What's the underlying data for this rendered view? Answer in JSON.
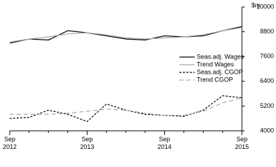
{
  "chart_data": {
    "type": "line",
    "y_label": "$m",
    "categories": [
      "Sep 2012",
      null,
      null,
      null,
      "Sep 2013",
      null,
      null,
      null,
      "Sep 2014",
      null,
      null,
      null,
      "Sep 2015"
    ],
    "series": [
      {
        "name": "Seas.adj. Wages",
        "color": "#000000",
        "dash": "solid",
        "values": [
          8250,
          8450,
          8400,
          8850,
          8750,
          8600,
          8450,
          8400,
          8600,
          8550,
          8600,
          8850,
          9050
        ]
      },
      {
        "name": "Trend Wages",
        "color": "#a6a6a6",
        "dash": "solid",
        "values": [
          8300,
          8450,
          8550,
          8700,
          8750,
          8650,
          8500,
          8450,
          8500,
          8550,
          8650,
          8850,
          9000
        ]
      },
      {
        "name": "Seas.adj. CGOP",
        "color": "#000000",
        "dash": "dotted",
        "values": [
          4600,
          4650,
          5000,
          4800,
          4450,
          5300,
          5000,
          4800,
          4750,
          4700,
          5000,
          5700,
          5600
        ]
      },
      {
        "name": "Trend CGOP",
        "color": "#a6a6a6",
        "dash": "dashed",
        "values": [
          4800,
          4800,
          4800,
          4850,
          4950,
          5050,
          5000,
          4850,
          4750,
          4750,
          4950,
          5350,
          5600
        ]
      }
    ],
    "ylim": [
      4000,
      10000
    ],
    "yticks": [
      4000,
      5200,
      6400,
      7600,
      8800,
      10000
    ]
  }
}
